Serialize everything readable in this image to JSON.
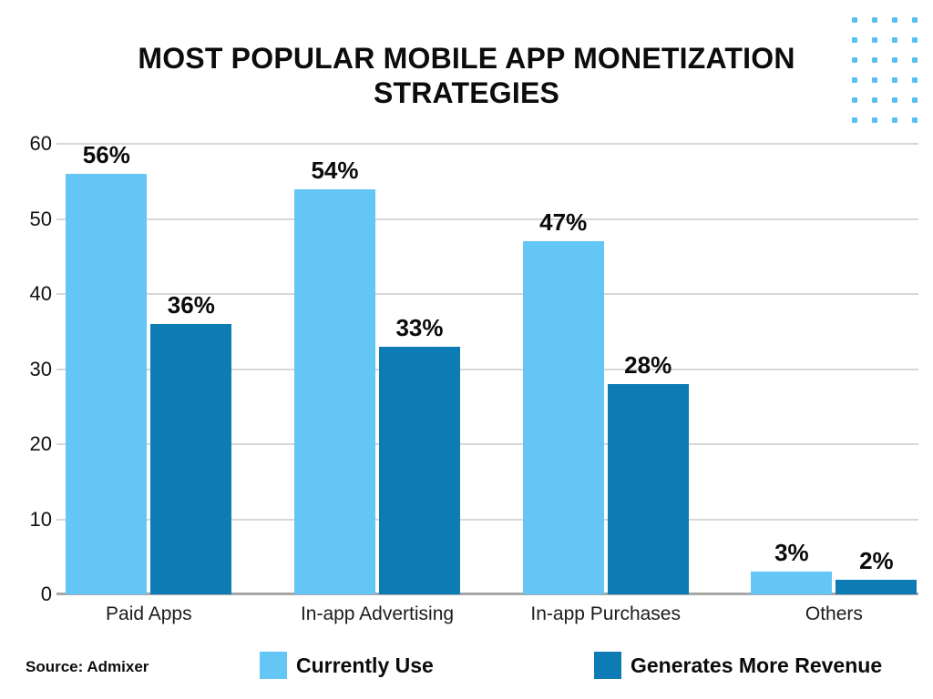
{
  "header": {
    "title": "MOST POPULAR MOBILE APP MONETIZATION STRATEGIES"
  },
  "footer": {
    "source": "Source: Admixer"
  },
  "legend": {
    "items": [
      {
        "label": "Currently Use",
        "color": "#63C6F5"
      },
      {
        "label": "Generates More Revenue",
        "color": "#0D7CB4"
      }
    ]
  },
  "decor": {
    "dot_grid": {
      "rows": 6,
      "cols": 4,
      "color": "#56C0F2"
    }
  },
  "chart_data": {
    "type": "bar",
    "title": "MOST POPULAR MOBILE APP MONETIZATION STRATEGIES",
    "categories": [
      "Paid Apps",
      "In-app Advertising",
      "In-app Purchases",
      "Others"
    ],
    "series": [
      {
        "name": "Currently Use",
        "color": "#63C6F5",
        "values": [
          56,
          54,
          47,
          3
        ]
      },
      {
        "name": "Generates More Revenue",
        "color": "#0D7CB4",
        "values": [
          36,
          33,
          28,
          2
        ]
      }
    ],
    "value_label_suffix": "%",
    "xlabel": "",
    "ylabel": "",
    "ylim": [
      0,
      60
    ],
    "yticks": [
      0,
      10,
      20,
      30,
      40,
      50,
      60
    ],
    "grid": true,
    "gridline_color": "#D7D7D7",
    "axis_line_color": "#A7A7A7",
    "legend_position": "bottom",
    "source": "Source: Admixer"
  }
}
